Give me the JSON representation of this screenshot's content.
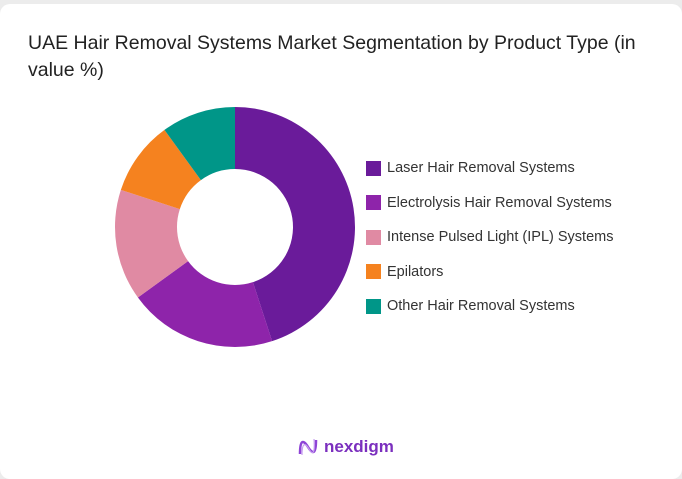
{
  "chart_data": {
    "type": "pie",
    "variant": "donut",
    "title": "UAE Hair Removal Systems Market Segmentation by Product Type (in value %)",
    "categories": [
      "Laser Hair Removal Systems",
      "Electrolysis Hair Removal Systems",
      "Intense Pulsed Light (IPL) Systems",
      "Epilators",
      "Other Hair Removal Systems"
    ],
    "values": [
      45,
      20,
      15,
      10,
      10
    ],
    "colors": [
      "#6A1B9A",
      "#8E24AA",
      "#E08AA3",
      "#F5821F",
      "#009688"
    ],
    "legend_position": "right"
  },
  "brand": {
    "name": "nexdigm"
  }
}
